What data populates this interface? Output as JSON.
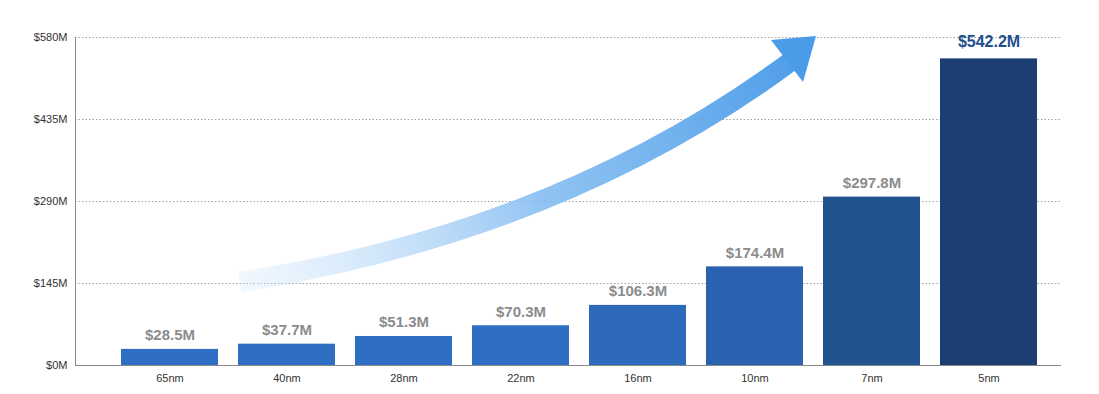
{
  "chart_data": {
    "type": "bar",
    "categories": [
      "65nm",
      "40nm",
      "28nm",
      "22nm",
      "16nm",
      "10nm",
      "7nm",
      "5nm"
    ],
    "values": [
      28.5,
      37.7,
      51.3,
      70.3,
      106.3,
      174.4,
      297.8,
      542.2
    ],
    "value_labels": [
      "$28.5M",
      "$37.7M",
      "$51.3M",
      "$70.3M",
      "$106.3M",
      "$174.4M",
      "$297.8M",
      "$542.2M"
    ],
    "colors": [
      "#2f6fc3",
      "#2f6fc3",
      "#2f6fc3",
      "#2f6fc3",
      "#2e6abc",
      "#2a62b0",
      "#23538f",
      "#1c3f73"
    ],
    "ylim": [
      0,
      580
    ],
    "yticks": [
      {
        "value": 0,
        "label": "$0M"
      },
      {
        "value": 145,
        "label": "$145M"
      },
      {
        "value": 290,
        "label": "$290M"
      },
      {
        "value": 435,
        "label": "$435M"
      },
      {
        "value": 580,
        "label": "$580M"
      }
    ],
    "grid": true,
    "data_labels": true
  }
}
